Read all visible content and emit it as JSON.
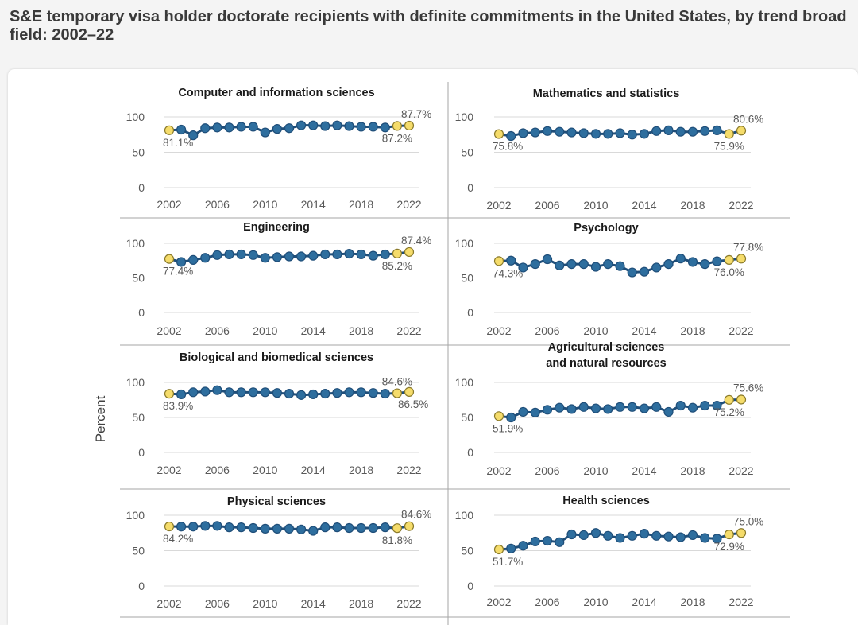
{
  "page": {
    "title": "S&E temporary visa holder doctorate recipients with definite commitments in the United States, by trend broad field: 2002–22"
  },
  "colors": {
    "line": "#1f4e79",
    "marker": "#2e6e9e",
    "highlight": "#f5dc6b",
    "highlight_stroke": "#8a7a2a",
    "grid": "#d9d9d9",
    "divider": "#a6a6a6"
  },
  "chart_data": {
    "type": "line",
    "ylabel": "Percent",
    "ylim": [
      0,
      100
    ],
    "yticks": [
      "0",
      "50",
      "100"
    ],
    "x": [
      2002,
      2003,
      2004,
      2005,
      2006,
      2007,
      2008,
      2009,
      2010,
      2011,
      2012,
      2013,
      2014,
      2015,
      2016,
      2017,
      2018,
      2019,
      2020,
      2021,
      2022
    ],
    "xticks": [
      "2002",
      "2006",
      "2010",
      "2014",
      "2018",
      "2022"
    ],
    "panels": [
      {
        "title": "Computer and information sciences",
        "values": [
          81.1,
          82,
          74,
          84,
          85,
          85,
          86,
          86,
          78,
          83,
          84,
          88,
          88,
          87,
          88,
          87,
          86,
          86,
          85,
          87.2,
          87.7
        ],
        "labels": [
          {
            "text": "81.1%",
            "index": 0,
            "pos": "below"
          },
          {
            "text": "87.2%",
            "index": 19,
            "pos": "below"
          },
          {
            "text": "87.7%",
            "index": 20,
            "pos": "above"
          }
        ]
      },
      {
        "title": "Mathematics and statistics",
        "values": [
          75.8,
          73,
          77,
          78,
          80,
          79,
          78,
          77,
          76,
          76,
          77,
          75,
          76,
          80,
          81,
          79,
          79,
          80,
          81,
          75.9,
          80.6
        ],
        "labels": [
          {
            "text": "75.8%",
            "index": 0,
            "pos": "below"
          },
          {
            "text": "75.9%",
            "index": 19,
            "pos": "below"
          },
          {
            "text": "80.6%",
            "index": 20,
            "pos": "above"
          }
        ]
      },
      {
        "title": "Engineering",
        "values": [
          77.4,
          73,
          76,
          79,
          83,
          84,
          84,
          83,
          79,
          80,
          81,
          81,
          82,
          84,
          84,
          85,
          84,
          82,
          84,
          85.2,
          87.4
        ],
        "labels": [
          {
            "text": "77.4%",
            "index": 0,
            "pos": "below"
          },
          {
            "text": "85.2%",
            "index": 19,
            "pos": "below"
          },
          {
            "text": "87.4%",
            "index": 20,
            "pos": "above"
          }
        ]
      },
      {
        "title": "Psychology",
        "values": [
          74.3,
          75,
          65,
          70,
          77,
          68,
          70,
          70,
          66,
          70,
          67,
          58,
          59,
          65,
          70,
          78,
          73,
          70,
          74,
          76.0,
          77.8
        ],
        "labels": [
          {
            "text": "74.3%",
            "index": 0,
            "pos": "below"
          },
          {
            "text": "76.0%",
            "index": 19,
            "pos": "below"
          },
          {
            "text": "77.8%",
            "index": 20,
            "pos": "above"
          }
        ]
      },
      {
        "title": "Biological and biomedical sciences",
        "values": [
          83.9,
          83,
          86,
          87,
          89,
          86,
          86,
          86,
          86,
          85,
          84,
          82,
          83,
          84,
          85,
          86,
          86,
          85,
          84,
          84.6,
          86.5
        ],
        "labels": [
          {
            "text": "83.9%",
            "index": 0,
            "pos": "below"
          },
          {
            "text": "84.6%",
            "index": 19,
            "pos": "above"
          },
          {
            "text": "86.5%",
            "index": 20,
            "pos": "below"
          }
        ]
      },
      {
        "title": "Agricultural sciences and natural resources",
        "values": [
          51.9,
          50,
          58,
          57,
          61,
          64,
          62,
          65,
          63,
          62,
          65,
          65,
          63,
          65,
          58,
          67,
          64,
          67,
          67,
          75.2,
          75.6
        ],
        "labels": [
          {
            "text": "51.9%",
            "index": 0,
            "pos": "below"
          },
          {
            "text": "75.2%",
            "index": 19,
            "pos": "below"
          },
          {
            "text": "75.6%",
            "index": 20,
            "pos": "above"
          }
        ]
      },
      {
        "title": "Physical sciences",
        "values": [
          84.2,
          84,
          84,
          85,
          85,
          83,
          83,
          82,
          81,
          81,
          81,
          80,
          78,
          83,
          83,
          82,
          82,
          82,
          83,
          81.8,
          84.6
        ],
        "labels": [
          {
            "text": "84.2%",
            "index": 0,
            "pos": "below"
          },
          {
            "text": "81.8%",
            "index": 19,
            "pos": "below"
          },
          {
            "text": "84.6%",
            "index": 20,
            "pos": "above"
          }
        ]
      },
      {
        "title": "Health sciences",
        "values": [
          51.7,
          53,
          57,
          63,
          64,
          62,
          73,
          72,
          75,
          71,
          68,
          71,
          74,
          71,
          70,
          69,
          72,
          68,
          67,
          72.9,
          75.0
        ],
        "labels": [
          {
            "text": "51.7%",
            "index": 0,
            "pos": "below"
          },
          {
            "text": "72.9%",
            "index": 19,
            "pos": "below"
          },
          {
            "text": "75.0%",
            "index": 20,
            "pos": "above"
          }
        ]
      }
    ]
  }
}
